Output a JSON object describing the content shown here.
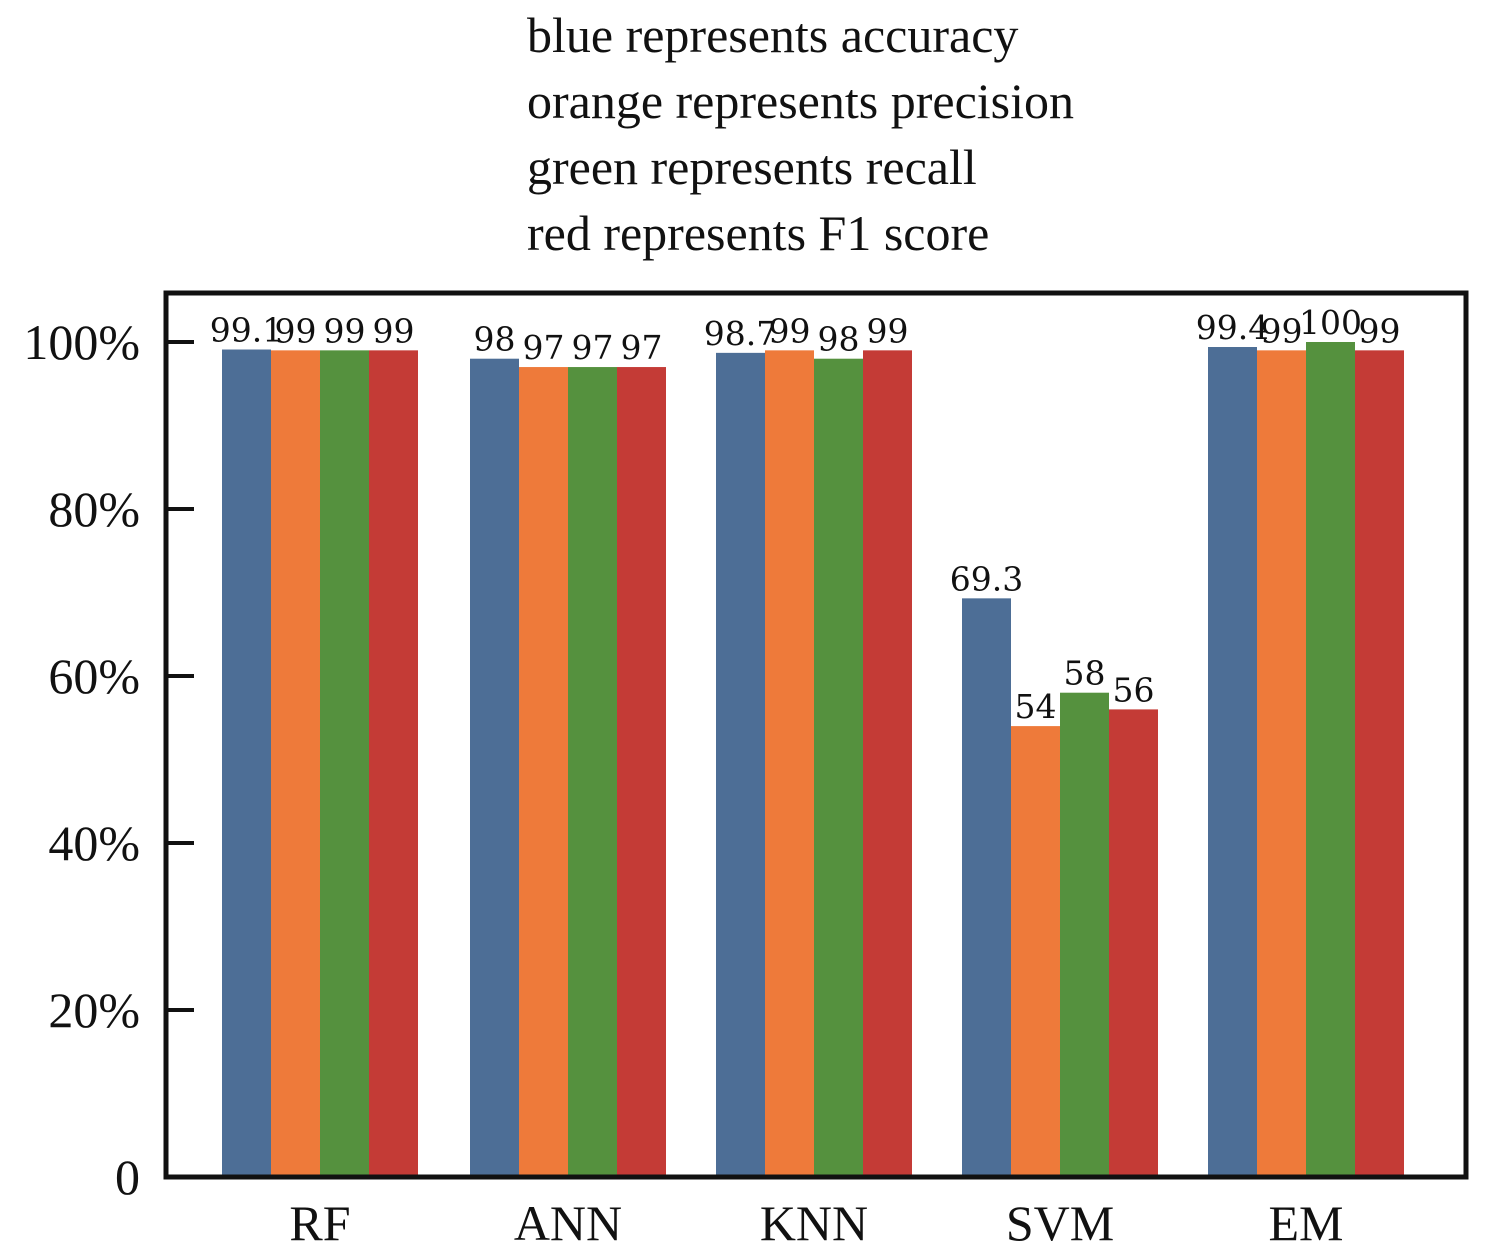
{
  "chart_data": {
    "type": "bar",
    "annotations": [
      "blue represents accuracy",
      "orange represents precision",
      "green represents recall",
      "red represents F1 score"
    ],
    "categories": [
      "RF",
      "ANN",
      "KNN",
      "SVM",
      "EM"
    ],
    "series": [
      {
        "color": "#4d6e96",
        "values": [
          99.1,
          98,
          98.7,
          69.3,
          99.4
        ],
        "labels": [
          "99.1",
          "98",
          "98.7",
          "69.3",
          "99.4"
        ]
      },
      {
        "color": "#ee7a3a",
        "values": [
          99,
          97,
          99,
          54,
          99
        ],
        "labels": [
          "99",
          "97",
          "99",
          "54",
          "99"
        ]
      },
      {
        "color": "#55913e",
        "values": [
          99,
          97,
          98,
          58,
          100
        ],
        "labels": [
          "99",
          "97",
          "98",
          "58",
          "100"
        ]
      },
      {
        "color": "#c43b36",
        "values": [
          99,
          97,
          99,
          56,
          99
        ],
        "labels": [
          "99",
          "97",
          "99",
          "56",
          "99"
        ]
      }
    ],
    "yticks": [
      0,
      20,
      40,
      60,
      80,
      100
    ],
    "ytick_labels": [
      "0",
      "20%",
      "40%",
      "60%",
      "80%",
      "100%"
    ],
    "ylim": [
      0,
      105.5
    ],
    "grid": false,
    "legend": "top-center (text annotations)"
  }
}
